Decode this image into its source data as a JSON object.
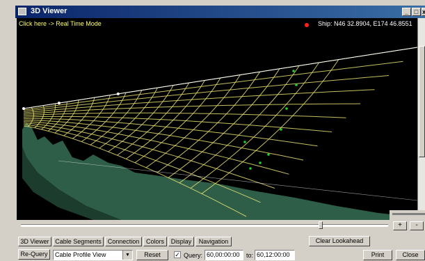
{
  "window": {
    "title": "3D Viewer",
    "controls": [
      "_",
      "□",
      "x"
    ]
  },
  "viewer": {
    "realtime_link": "Click here -> Real Time Mode",
    "ship_position": "Ship: N46 32.8904, E174 46.8551"
  },
  "colors": {
    "background": "#000000",
    "grid": "#e8e070",
    "cable": "#ffffff",
    "markers": "#22cc33",
    "seabed": "#2e5e48"
  },
  "zoom": {
    "plus_label": "+",
    "minus_label": "-"
  },
  "timeline": {
    "position": 0.81
  },
  "tabs": [
    "3D Viewer",
    "Cable Segments",
    "Connection",
    "Colors",
    "Display",
    "Navigation"
  ],
  "toolbar": {
    "clear_lookahead": "Clear Lookahead",
    "requery": "Re-Query",
    "view_select": "Cable Profile View",
    "reset": "Reset",
    "query_checked": true,
    "query_label": "Query:",
    "query_from": "60,00:00:00",
    "to_label": "to:",
    "query_to": "60,12:00:00",
    "print": "Print",
    "close": "Close"
  }
}
